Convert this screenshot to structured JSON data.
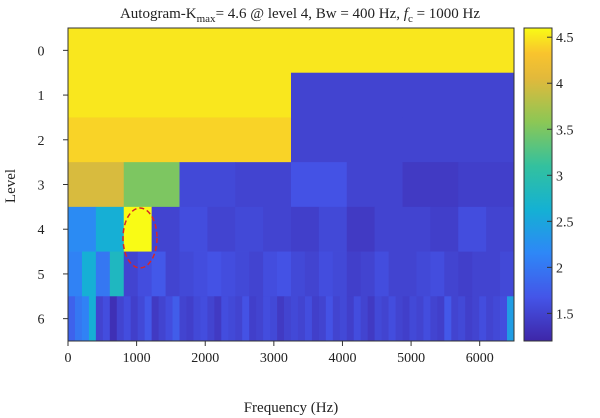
{
  "chart_data": {
    "type": "heatmap",
    "title": {
      "part1": "Autogram-K",
      "sub": "max",
      "part2": "= 4.6 @ level 4, Bw = 400 Hz, ",
      "fc_italic": "f",
      "fc_sub": "c",
      "part3": " = 1000 Hz"
    },
    "xlabel": "Frequency (Hz)",
    "ylabel": "Level",
    "xlim": [
      0,
      6500
    ],
    "x_ticks": [
      "0",
      "1000",
      "2000",
      "3000",
      "4000",
      "5000",
      "6000"
    ],
    "y_ticks": [
      "0",
      "1",
      "2",
      "3",
      "4",
      "5",
      "6"
    ],
    "colorbar": {
      "range": [
        1.2,
        4.6
      ],
      "ticks": [
        "1.5",
        "2",
        "2.5",
        "3",
        "3.5",
        "4",
        "4.5"
      ],
      "colormap": "parula"
    },
    "levels": [
      {
        "level": 0,
        "values": [
          4.5
        ]
      },
      {
        "level": 1,
        "values": [
          4.5,
          1.5
        ]
      },
      {
        "level": 2,
        "values": [
          4.4,
          4.4,
          1.5,
          1.5
        ]
      },
      {
        "level": 3,
        "values": [
          4.0,
          3.5,
          1.55,
          1.5,
          1.65,
          1.5,
          1.4,
          1.45
        ]
      },
      {
        "level": 4,
        "values": [
          2.2,
          2.6,
          4.6,
          1.5,
          1.6,
          1.5,
          1.55,
          1.5,
          1.45,
          1.55,
          1.4,
          1.5,
          1.5,
          1.45,
          1.6,
          1.5
        ]
      },
      {
        "level": 5,
        "values": [
          2.1,
          2.6,
          2.0,
          2.8,
          1.5,
          1.6,
          1.7,
          1.5,
          1.55,
          1.6,
          1.65,
          1.6,
          1.55,
          1.5,
          1.6,
          1.65,
          1.55,
          1.5,
          1.6,
          1.55,
          1.45,
          1.5,
          1.6,
          1.5,
          1.5,
          1.55,
          1.6,
          1.5,
          1.45,
          1.5,
          1.5,
          1.55
        ]
      },
      {
        "level": 6,
        "values": [
          1.8,
          2.0,
          2.1,
          2.6,
          1.5,
          1.6,
          1.3,
          1.5,
          1.6,
          1.45,
          1.55,
          1.7,
          1.4,
          1.5,
          1.6,
          1.75,
          1.5,
          1.45,
          1.55,
          1.6,
          1.5,
          1.4,
          1.6,
          1.55,
          1.5,
          1.65,
          1.45,
          1.5,
          1.6,
          1.55,
          1.4,
          1.5,
          1.55,
          1.5,
          1.6,
          1.45,
          1.5,
          1.65,
          1.5,
          1.55,
          1.45,
          1.6,
          1.5,
          1.4,
          1.55,
          1.5,
          1.6,
          1.5,
          1.45,
          1.55,
          1.5,
          1.6,
          1.5,
          1.45,
          1.7,
          1.5,
          1.55,
          1.45,
          1.5,
          1.6,
          1.5,
          1.55,
          1.6,
          2.4
        ]
      }
    ],
    "highlight": {
      "shape": "ellipse",
      "level": 4,
      "frequency_hz": 1000,
      "color": "#d62728",
      "style": "dashed"
    }
  }
}
